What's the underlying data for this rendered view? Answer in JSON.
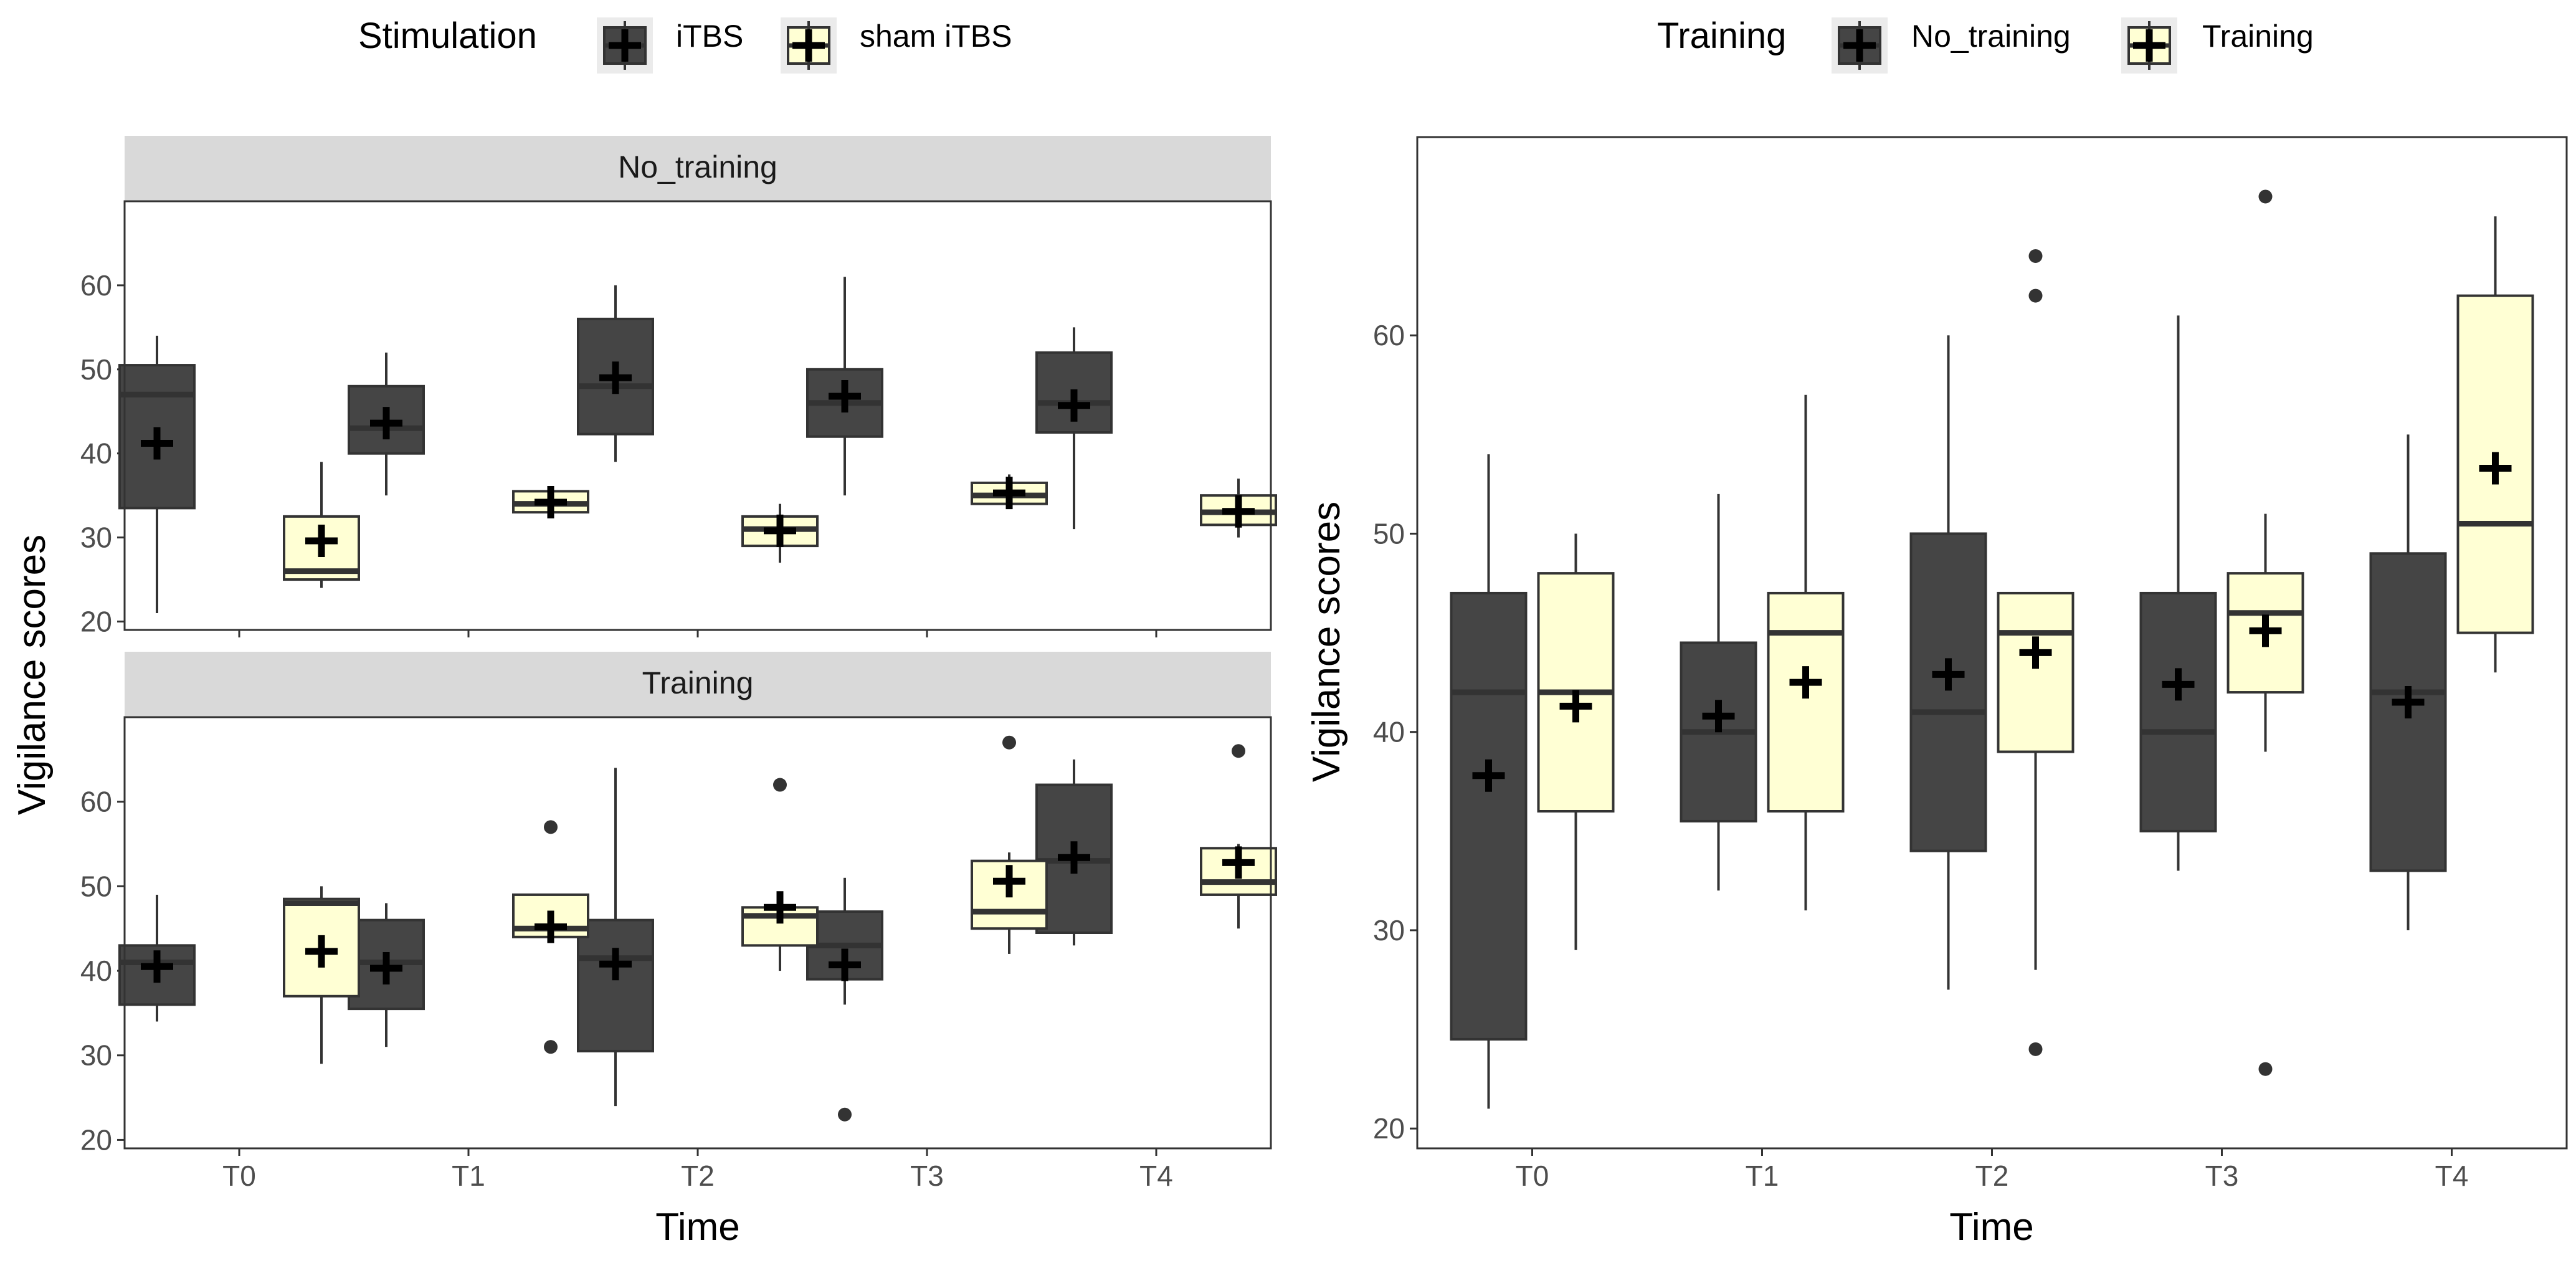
{
  "chart_data": [
    {
      "type": "box",
      "title": "",
      "xlabel": "Time",
      "ylabel": "Vigilance scores",
      "categories": [
        "T0",
        "T1",
        "T2",
        "T3",
        "T4"
      ],
      "ylim": [
        19,
        70
      ],
      "yticks": [
        20,
        30,
        40,
        50,
        60
      ],
      "legend": {
        "title": "Stimulation",
        "position": "top",
        "entries": [
          "iTBS",
          "sham iTBS"
        ]
      },
      "group_colors": [
        "#454545",
        "#ffffd4"
      ],
      "facets": [
        {
          "label": "No_training",
          "series": [
            {
              "name": "iTBS",
              "boxes": [
                {
                  "min": 21,
                  "q1": 33.5,
                  "median": 47,
                  "q3": 50.5,
                  "max": 54,
                  "mean": 41.2,
                  "outliers": []
                },
                {
                  "min": 35,
                  "q1": 40,
                  "median": 43,
                  "q3": 48,
                  "max": 52,
                  "mean": 43.6,
                  "outliers": []
                },
                {
                  "min": 39,
                  "q1": 42.3,
                  "median": 48,
                  "q3": 56,
                  "max": 60,
                  "mean": 49,
                  "outliers": []
                },
                {
                  "min": 35,
                  "q1": 42,
                  "median": 46,
                  "q3": 50,
                  "max": 61,
                  "mean": 46.8,
                  "outliers": []
                },
                {
                  "min": 31,
                  "q1": 42.5,
                  "median": 46,
                  "q3": 52,
                  "max": 55,
                  "mean": 45.7,
                  "outliers": []
                }
              ]
            },
            {
              "name": "sham iTBS",
              "boxes": [
                {
                  "min": 24,
                  "q1": 25,
                  "median": 26,
                  "q3": 32.5,
                  "max": 39,
                  "mean": 29.6,
                  "outliers": []
                },
                {
                  "min": 32.5,
                  "q1": 33,
                  "median": 34,
                  "q3": 35.5,
                  "max": 36,
                  "mean": 34.2,
                  "outliers": []
                },
                {
                  "min": 27,
                  "q1": 29,
                  "median": 31,
                  "q3": 32.5,
                  "max": 34,
                  "mean": 30.8,
                  "outliers": []
                },
                {
                  "min": 33.5,
                  "q1": 34,
                  "median": 35,
                  "q3": 36.5,
                  "max": 37.5,
                  "mean": 35.3,
                  "outliers": []
                },
                {
                  "min": 30,
                  "q1": 31.5,
                  "median": 33,
                  "q3": 35,
                  "max": 37,
                  "mean": 33.1,
                  "outliers": []
                }
              ]
            }
          ]
        },
        {
          "label": "Training",
          "series": [
            {
              "name": "iTBS",
              "boxes": [
                {
                  "min": 34,
                  "q1": 36,
                  "median": 41,
                  "q3": 43,
                  "max": 49,
                  "mean": 40.5,
                  "outliers": []
                },
                {
                  "min": 31,
                  "q1": 35.5,
                  "median": 41,
                  "q3": 46,
                  "max": 48,
                  "mean": 40.3,
                  "outliers": []
                },
                {
                  "min": 24,
                  "q1": 30.5,
                  "median": 41.5,
                  "q3": 46,
                  "max": 64,
                  "mean": 40.8,
                  "outliers": []
                },
                {
                  "min": 36,
                  "q1": 39,
                  "median": 43,
                  "q3": 47,
                  "max": 51,
                  "mean": 40.7,
                  "outliers": [
                    23
                  ]
                },
                {
                  "min": 43,
                  "q1": 44.5,
                  "median": 53,
                  "q3": 62,
                  "max": 65,
                  "mean": 53.4,
                  "outliers": []
                }
              ]
            },
            {
              "name": "sham iTBS",
              "boxes": [
                {
                  "min": 29,
                  "q1": 37,
                  "median": 48,
                  "q3": 48.5,
                  "max": 50,
                  "mean": 42.3,
                  "outliers": []
                },
                {
                  "min": 44,
                  "q1": 44,
                  "median": 45,
                  "q3": 49,
                  "max": 49,
                  "mean": 45.2,
                  "outliers": [
                    57,
                    31
                  ]
                },
                {
                  "min": 40,
                  "q1": 43,
                  "median": 46.5,
                  "q3": 47.5,
                  "max": 48,
                  "mean": 47.5,
                  "outliers": [
                    62
                  ]
                },
                {
                  "min": 42,
                  "q1": 45,
                  "median": 47,
                  "q3": 53,
                  "max": 54,
                  "mean": 50.6,
                  "outliers": [
                    67
                  ]
                },
                {
                  "min": 45,
                  "q1": 49,
                  "median": 50.5,
                  "q3": 54.5,
                  "max": 55,
                  "mean": 52.8,
                  "outliers": [
                    66
                  ]
                }
              ]
            }
          ]
        }
      ]
    },
    {
      "type": "box",
      "title": "",
      "xlabel": "Time",
      "ylabel": "Vigilance scores",
      "categories": [
        "T0",
        "T1",
        "T2",
        "T3",
        "T4"
      ],
      "ylim": [
        19,
        70
      ],
      "yticks": [
        20,
        30,
        40,
        50,
        60
      ],
      "legend": {
        "title": "Training",
        "position": "top",
        "entries": [
          "No_training",
          "Training"
        ]
      },
      "group_colors": [
        "#454545",
        "#ffffd4"
      ],
      "series": [
        {
          "name": "No_training",
          "boxes": [
            {
              "min": 21,
              "q1": 24.5,
              "median": 42,
              "q3": 47,
              "max": 54,
              "mean": 37.8,
              "outliers": []
            },
            {
              "min": 32,
              "q1": 35.5,
              "median": 40,
              "q3": 44.5,
              "max": 52,
              "mean": 40.8,
              "outliers": []
            },
            {
              "min": 27,
              "q1": 34,
              "median": 41,
              "q3": 50,
              "max": 60,
              "mean": 42.9,
              "outliers": []
            },
            {
              "min": 33,
              "q1": 35,
              "median": 40,
              "q3": 47,
              "max": 61,
              "mean": 42.4,
              "outliers": []
            },
            {
              "min": 30,
              "q1": 33,
              "median": 42,
              "q3": 49,
              "max": 55,
              "mean": 41.5,
              "outliers": []
            }
          ]
        },
        {
          "name": "Training",
          "boxes": [
            {
              "min": 29,
              "q1": 36,
              "median": 42,
              "q3": 48,
              "max": 50,
              "mean": 41.3,
              "outliers": []
            },
            {
              "min": 31,
              "q1": 36,
              "median": 45,
              "q3": 47,
              "max": 57,
              "mean": 42.5,
              "outliers": []
            },
            {
              "min": 28,
              "q1": 39,
              "median": 45,
              "q3": 47,
              "max": 47,
              "mean": 44,
              "outliers": [
                64,
                62,
                24
              ]
            },
            {
              "min": 39,
              "q1": 42,
              "median": 46,
              "q3": 48,
              "max": 51,
              "mean": 45.1,
              "outliers": [
                67,
                23
              ]
            },
            {
              "min": 43,
              "q1": 45,
              "median": 50.5,
              "q3": 62,
              "max": 66,
              "mean": 53.3,
              "outliers": []
            }
          ]
        }
      ]
    }
  ]
}
